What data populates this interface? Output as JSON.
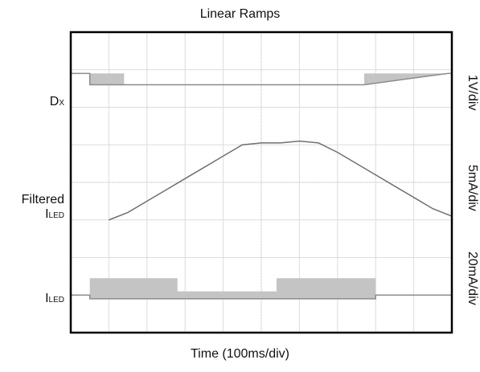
{
  "chart_data": {
    "type": "line",
    "title": "Linear Ramps",
    "xlabel": "Time (100ms/div)",
    "x_divisions": 10,
    "y_divisions": 8,
    "grid": true,
    "x_unit_per_div": "100ms",
    "series": [
      {
        "name": "DX",
        "display": {
          "main": "D",
          "sub": "X"
        },
        "scale": "1V/div",
        "x": [
          0.0,
          0.5,
          0.5,
          1.4,
          1.4,
          4.9,
          4.9,
          7.7,
          7.7,
          9.9,
          10.0
        ],
        "y": [
          6.9,
          6.9,
          6.9,
          6.9,
          6.6,
          6.6,
          6.6,
          6.6,
          6.9,
          6.9,
          6.9
        ],
        "y_low": [
          6.9,
          6.9,
          6.6,
          6.6,
          6.6,
          6.6,
          6.6,
          6.6,
          6.6,
          6.9,
          6.9
        ]
      },
      {
        "name": "Filtered ILED",
        "display": {
          "prefix": "Filtered",
          "main": "I",
          "sub": "LED"
        },
        "scale": "5mA/div",
        "x": [
          1.0,
          1.5,
          2.0,
          2.5,
          3.0,
          3.5,
          4.0,
          4.5,
          5.0,
          5.5,
          6.0,
          6.5,
          7.0,
          7.5,
          8.0,
          8.5,
          9.0,
          9.5,
          10.0
        ],
        "y": [
          3.0,
          3.2,
          3.5,
          3.8,
          4.1,
          4.4,
          4.7,
          5.0,
          5.05,
          5.05,
          5.1,
          5.05,
          4.8,
          4.5,
          4.2,
          3.9,
          3.6,
          3.3,
          3.1
        ]
      },
      {
        "name": "ILED",
        "display": {
          "main": "I",
          "sub": "LED"
        },
        "scale": "20mA/div",
        "x": [
          0.0,
          0.5,
          0.5,
          2.8,
          2.8,
          5.4,
          5.4,
          8.0,
          8.0,
          10.0
        ],
        "y": [
          1.0,
          1.0,
          1.45,
          1.45,
          1.1,
          1.1,
          1.45,
          1.45,
          1.0,
          1.0
        ],
        "y_low": [
          1.0,
          1.0,
          0.9,
          0.9,
          0.9,
          0.9,
          0.9,
          0.9,
          1.0,
          1.0
        ]
      }
    ]
  }
}
